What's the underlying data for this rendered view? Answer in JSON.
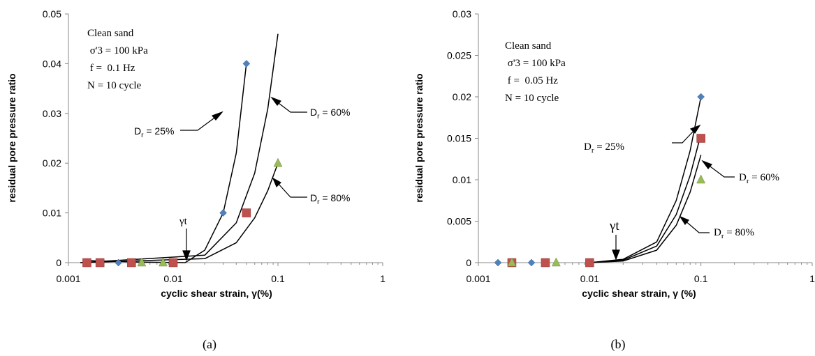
{
  "chart_data": [
    {
      "type": "scatter",
      "panel_label": "(a)",
      "xlabel": "cyclic  shear  strain, γ(%)",
      "ylabel": "residual pore  pressure ratio",
      "xscale": "log",
      "xlim": [
        0.001,
        1
      ],
      "ylim": [
        0,
        0.05
      ],
      "x_ticks": [
        "0.001",
        "0.01",
        "0.1",
        "1"
      ],
      "y_ticks": [
        "0",
        "0.01",
        "0.02",
        "0.03",
        "0.04",
        "0.05"
      ],
      "grid": false,
      "annotations": {
        "conditions": [
          "Clean sand",
          " σ'3 = 100 kPa",
          " f =  0.1 Hz",
          "N = 10 cycle"
        ],
        "threshold_label": "γt",
        "dr25": "D",
        "dr25_sub": "r",
        "dr25_val": " = 25%",
        "dr60": "D",
        "dr60_sub": "r",
        "dr60_val": " = 60%",
        "dr80": "D",
        "dr80_sub": "r",
        "dr80_val": " = 80%"
      },
      "series": [
        {
          "marker": "diamond",
          "color": "#4F81BD",
          "points": [
            [
              0.0015,
              0
            ],
            [
              0.003,
              0
            ],
            [
              0.03,
              0.01
            ],
            [
              0.05,
              0.04
            ]
          ]
        },
        {
          "marker": "square",
          "color": "#C0504D",
          "points": [
            [
              0.0015,
              0
            ],
            [
              0.002,
              0
            ],
            [
              0.004,
              0
            ],
            [
              0.01,
              0
            ],
            [
              0.05,
              0.01
            ]
          ]
        },
        {
          "marker": "triangle",
          "color": "#9BBB59",
          "points": [
            [
              0.005,
              0
            ],
            [
              0.008,
              0
            ],
            [
              0.1,
              0.02
            ]
          ]
        }
      ],
      "curves": [
        {
          "points": [
            [
              0.0015,
              0.0004
            ],
            [
              0.005,
              0.0001
            ],
            [
              0.013,
              0
            ],
            [
              0.02,
              0.0025
            ],
            [
              0.03,
              0.01
            ],
            [
              0.04,
              0.022
            ],
            [
              0.05,
              0.04
            ]
          ]
        },
        {
          "points": [
            [
              0.0013,
              0
            ],
            [
              0.02,
              0.0015
            ],
            [
              0.04,
              0.008
            ],
            [
              0.06,
              0.018
            ],
            [
              0.08,
              0.031
            ],
            [
              0.1,
              0.046
            ]
          ]
        },
        {
          "points": [
            [
              0.0013,
              0
            ],
            [
              0.02,
              0.0008
            ],
            [
              0.04,
              0.004
            ],
            [
              0.06,
              0.009
            ],
            [
              0.08,
              0.0145
            ],
            [
              0.1,
              0.02
            ]
          ]
        }
      ],
      "threshold_x": 0.014
    },
    {
      "type": "scatter",
      "panel_label": "(b)",
      "xlabel": "cyclic shear strain, γ (%)",
      "ylabel": "residual pore pressure ratio",
      "xscale": "log",
      "xlim": [
        0.001,
        1
      ],
      "ylim": [
        0,
        0.03
      ],
      "x_ticks": [
        "0.001",
        "0.01",
        "0.1",
        "1"
      ],
      "y_ticks": [
        "0",
        "0.005",
        "0.01",
        "0.015",
        "0.02",
        "0.025",
        "0.03"
      ],
      "grid": false,
      "annotations": {
        "conditions": [
          "Clean sand",
          " σ'3 = 100 kPa",
          " f =  0.05 Hz",
          "N = 10 cycle"
        ],
        "threshold_label": "γt",
        "dr25": "D",
        "dr25_sub": "r",
        "dr25_val": " = 25%",
        "dr60": "D",
        "dr60_sub": "r",
        "dr60_val": " = 60%",
        "dr80": "D",
        "dr80_sub": "r",
        "dr80_val": " = 80%"
      },
      "series": [
        {
          "marker": "diamond",
          "color": "#4F81BD",
          "points": [
            [
              0.0015,
              0
            ],
            [
              0.003,
              0
            ],
            [
              0.1,
              0.02
            ]
          ]
        },
        {
          "marker": "square",
          "color": "#C0504D",
          "points": [
            [
              0.002,
              0
            ],
            [
              0.004,
              0
            ],
            [
              0.01,
              0
            ],
            [
              0.1,
              0.015
            ]
          ]
        },
        {
          "marker": "triangle",
          "color": "#9BBB59",
          "points": [
            [
              0.002,
              0
            ],
            [
              0.005,
              0
            ],
            [
              0.1,
              0.01
            ]
          ]
        }
      ],
      "curves": [
        {
          "points": [
            [
              0.01,
              0
            ],
            [
              0.02,
              0.0004
            ],
            [
              0.04,
              0.0025
            ],
            [
              0.06,
              0.0075
            ],
            [
              0.08,
              0.0135
            ],
            [
              0.1,
              0.02
            ]
          ]
        },
        {
          "points": [
            [
              0.01,
              0
            ],
            [
              0.02,
              0.0003
            ],
            [
              0.04,
              0.002
            ],
            [
              0.06,
              0.0058
            ],
            [
              0.08,
              0.0105
            ],
            [
              0.1,
              0.0155
            ]
          ]
        },
        {
          "points": [
            [
              0.01,
              0
            ],
            [
              0.02,
              0.0002
            ],
            [
              0.04,
              0.0015
            ],
            [
              0.06,
              0.0045
            ],
            [
              0.08,
              0.0085
            ],
            [
              0.1,
              0.013
            ]
          ]
        }
      ],
      "threshold_x": 0.016
    }
  ]
}
